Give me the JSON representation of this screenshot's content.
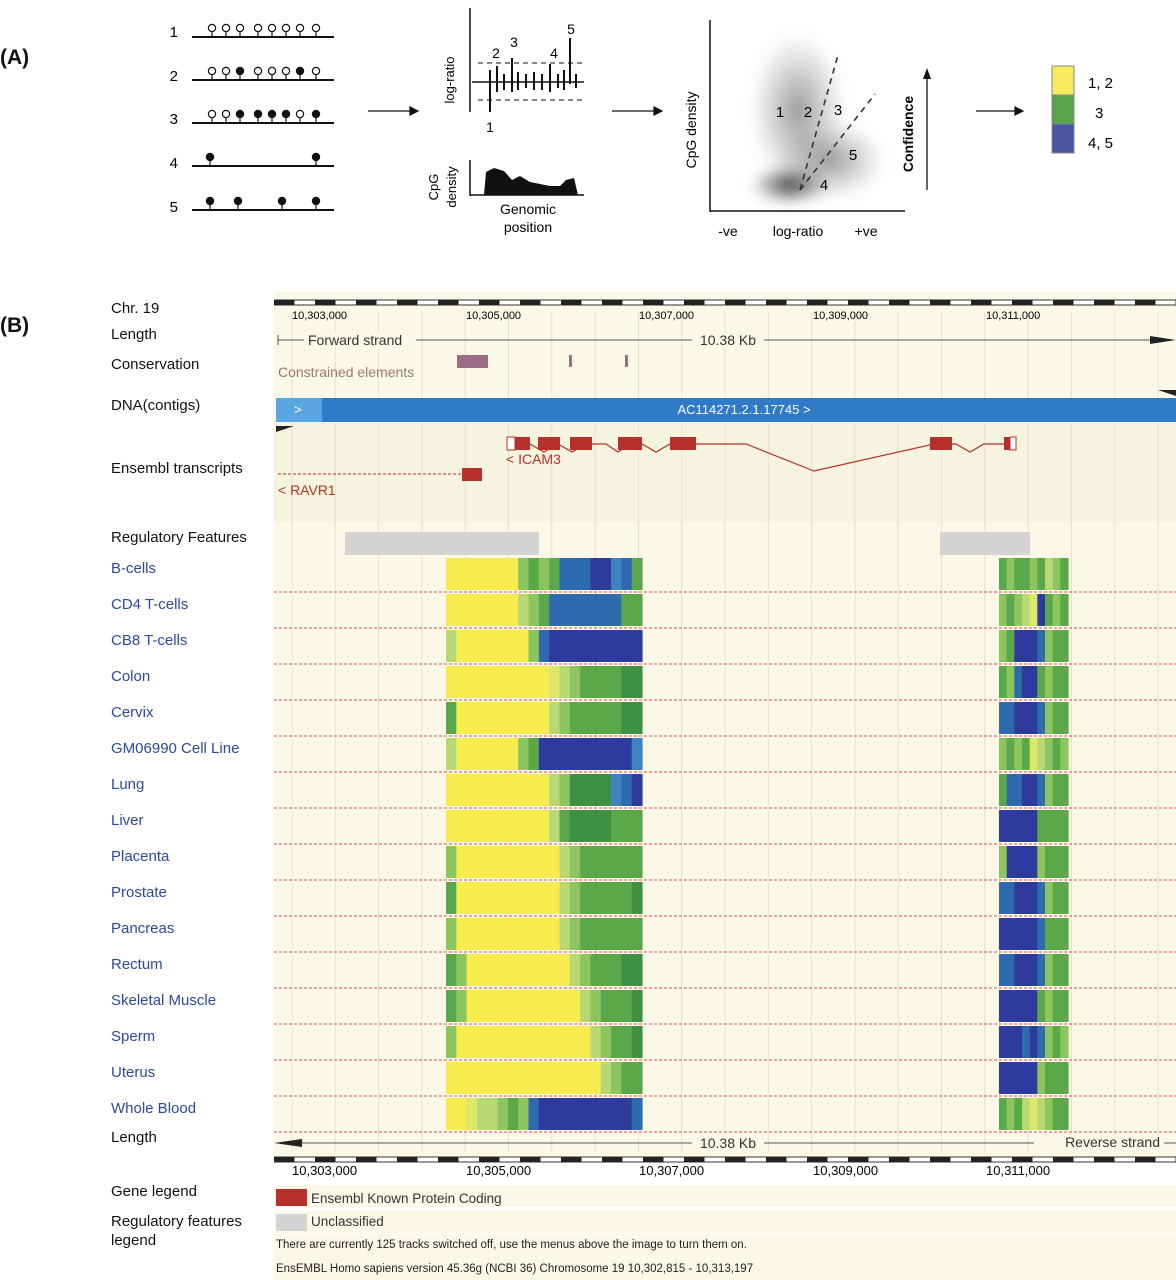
{
  "panel_a": {
    "label": "(A)",
    "rows": [
      "1",
      "2",
      "3",
      "4",
      "5"
    ],
    "logratio_axis": "log-ratio",
    "peak_labels": [
      "1",
      "2",
      "3",
      "4",
      "5"
    ],
    "cpg_axis": "CpG density",
    "genomic_position": "Genomic position",
    "scatter_ylabel": "CpG density",
    "scatter_xticks": [
      "-ve",
      "log-ratio",
      "+ve"
    ],
    "cluster_labels": [
      "1",
      "2",
      "3",
      "4",
      "5"
    ],
    "confidence": "Confidence",
    "legend": [
      {
        "label": "1, 2",
        "color": "#f7ea5f"
      },
      {
        "label": "3",
        "color": "#5aa54a"
      },
      {
        "label": "4, 5",
        "color": "#4a57a5"
      }
    ]
  },
  "panel_b": {
    "label": "(B)",
    "chrom": "Chr. 19",
    "length_label": "Length",
    "top_ticks": [
      "10,303,000",
      "10,305,000",
      "10,307,000",
      "10,309,000",
      "10,311,000"
    ],
    "bottom_ticks": [
      "10,303,000",
      "10,305,000",
      "10,307,000",
      "10,309,000",
      "10,311,000"
    ],
    "forward_strand": "Forward strand",
    "length_value": "10.38 Kb",
    "conservation_label": "Conservation",
    "constrained_elements": "Constrained elements",
    "dna_label": "DNA(contigs)",
    "contig_arrow": ">",
    "contig_name": "AC114271.2.1.17745 >",
    "transcripts_label": "Ensembl transcripts",
    "gene_icam3": "< ICAM3",
    "gene_ravr1": "< RAVR1",
    "regulatory_label": "Regulatory Features",
    "tissues": [
      "B-cells",
      "CD4 T-cells",
      "CB8 T-cells",
      "Colon",
      "Cervix",
      "GM06990 Cell Line",
      "Lung",
      "Liver",
      "Placenta",
      "Prostate",
      "Pancreas",
      "Rectum",
      "Skeletal Muscle",
      "Sperm",
      "Uterus",
      "Whole Blood"
    ],
    "length_label_bottom": "Length",
    "reverse_strand": "Reverse strand",
    "gene_legend_label": "Gene legend",
    "gene_legend_item": "Ensembl Known Protein Coding",
    "reg_legend_label_1": "Regulatory features",
    "reg_legend_label_2": "legend",
    "reg_legend_item": "Unclassified",
    "tracks_note": "There are currently 125 tracks switched off, use the menus above the image to turn them on.",
    "version_note": "EnsEMBL Homo sapiens version 45.36g (NCBI 36) Chromosome 19 10,302,815 - 10,313,197",
    "colors": {
      "yellow": "#f7ec4e",
      "green": "#5ba84a",
      "blue": "#2d6aae",
      "navy": "#2e3a9c",
      "gene_red": "#b8302a",
      "contig_blue": "#2f7bc8",
      "unclassified": "#d4d4d4"
    }
  }
}
